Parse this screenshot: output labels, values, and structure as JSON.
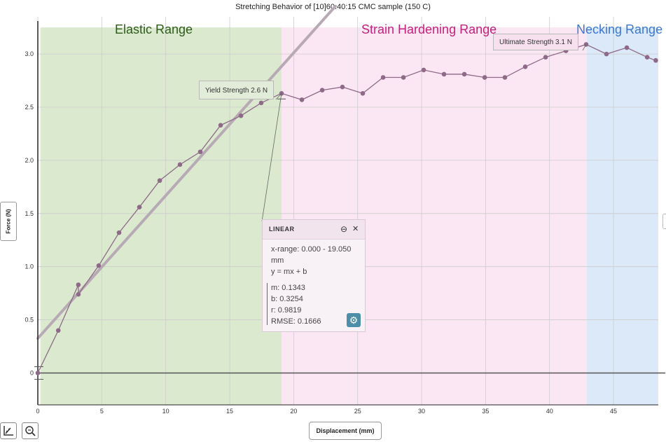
{
  "chart_data": {
    "type": "scatter",
    "title": "Stretching Behavior of [10]60:40:15 CMC sample (150 C)",
    "xlabel": "Displacement (mm)",
    "ylabel": "Force (N)",
    "xlim": [
      0,
      48.5
    ],
    "ylim": [
      -0.3,
      3.35
    ],
    "x_ticks": [
      0,
      5,
      10,
      15,
      20,
      25,
      30,
      35,
      40,
      45
    ],
    "y_ticks": [
      0,
      0.5,
      1.0,
      1.5,
      2.0,
      2.5,
      3.0
    ],
    "y_tick_labels": [
      "0",
      "0.5",
      "1.0",
      "1.5",
      "2.0",
      "2.5",
      "3.0"
    ],
    "grid": true,
    "ranges": [
      {
        "label": "Elastic Range",
        "x": [
          0.2,
          19.05
        ],
        "color": "#dbeacf",
        "label_color": "#2e5a1a"
      },
      {
        "label": "Strain Hardening Range",
        "x": [
          19.05,
          42.9
        ],
        "color": "#fbe7f3",
        "label_color": "#c2227a"
      },
      {
        "label": "Necking Range",
        "x": [
          42.9,
          48.5
        ],
        "color": "#dbe9f9",
        "label_color": "#3a78d4"
      }
    ],
    "series": [
      {
        "color": "#8e6a88",
        "x": [
          0,
          1.6,
          3.17,
          3.17,
          4.76,
          6.35,
          7.94,
          9.53,
          11.11,
          12.7,
          14.29,
          15.88,
          17.46,
          19.05,
          20.64,
          22.23,
          23.81,
          25.4,
          26.99,
          28.58,
          30.16,
          31.75,
          33.34,
          34.93,
          36.51,
          38.1,
          39.69,
          41.28,
          42.86,
          44.45,
          46.04,
          47.63,
          48.3
        ],
        "y": [
          0,
          0.4,
          0.83,
          0.74,
          1.01,
          1.32,
          1.56,
          1.81,
          1.96,
          2.08,
          2.33,
          2.42,
          2.54,
          2.63,
          2.57,
          2.66,
          2.69,
          2.63,
          2.78,
          2.78,
          2.85,
          2.81,
          2.81,
          2.78,
          2.78,
          2.88,
          2.97,
          3.03,
          3.09,
          3.0,
          3.06,
          2.97,
          2.94
        ]
      }
    ],
    "fit_line": {
      "m": 0.1343,
      "b": 0.3254,
      "color": "#b8aab5"
    },
    "annotations": {
      "yield": {
        "label": "Yield Strength 2.6 N",
        "x": 19.05,
        "y": 2.63
      },
      "ultimate": {
        "label": "Ultimate Strength 3.1 N",
        "x": 42.86,
        "y": 3.09
      }
    },
    "fit_panel": {
      "title": "LINEAR",
      "range_line1": "x-range: 0.000 - 19.050",
      "range_line2": "mm",
      "equation": "y = mx + b",
      "m": "m: 0.1343",
      "b": "b: 0.3254",
      "r": "r: 0.9819",
      "rmse": "RMSE: 0.1666"
    }
  },
  "icons": {
    "minimize": "⊖",
    "close": "✕",
    "settings": "gear-icon",
    "graph_tool": "graph-axes-icon",
    "zoom_tool": "zoom-icon"
  }
}
